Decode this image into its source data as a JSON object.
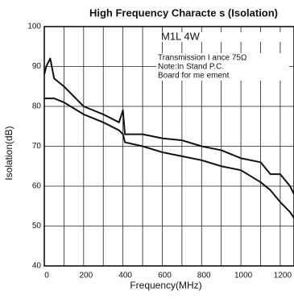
{
  "chart_data": {
    "type": "line",
    "title": "High Frequency Characte      s (Isolation)",
    "xlabel": "Frequency(MHz)",
    "ylabel": "Isolation(dB)",
    "annotations": [
      "M1L     4W",
      "Transmission I         ance 75Ω",
      "Note:In Stand        P.C.",
      "Board for me         ement"
    ],
    "x": [
      0,
      10,
      30,
      50,
      100,
      200,
      300,
      380,
      400,
      410,
      500,
      600,
      700,
      800,
      900,
      1000,
      1100,
      1150,
      1200,
      1250,
      1270
    ],
    "series": [
      {
        "color": "#111111",
        "values": [
          88,
          90,
          92,
          87,
          85,
          80,
          78,
          76,
          79,
          73,
          73,
          72,
          71.5,
          70,
          69,
          67,
          66,
          63,
          63,
          60,
          58
        ]
      },
      {
        "color": "#111111",
        "values": [
          82,
          82,
          82,
          82,
          81,
          78,
          76,
          74,
          73,
          71,
          70,
          68.5,
          67.5,
          66.5,
          65,
          64,
          61,
          59,
          56,
          53.5,
          52
        ]
      }
    ],
    "xlim": [
      0,
      1270
    ],
    "ylim": [
      40,
      100
    ],
    "xticks": [
      0,
      200,
      400,
      600,
      800,
      1000,
      1200
    ],
    "xminor_ticks": [
      100,
      300,
      500,
      700,
      900,
      1100
    ],
    "yticks": [
      40,
      50,
      60,
      70,
      80,
      90,
      100
    ],
    "grid": true
  }
}
